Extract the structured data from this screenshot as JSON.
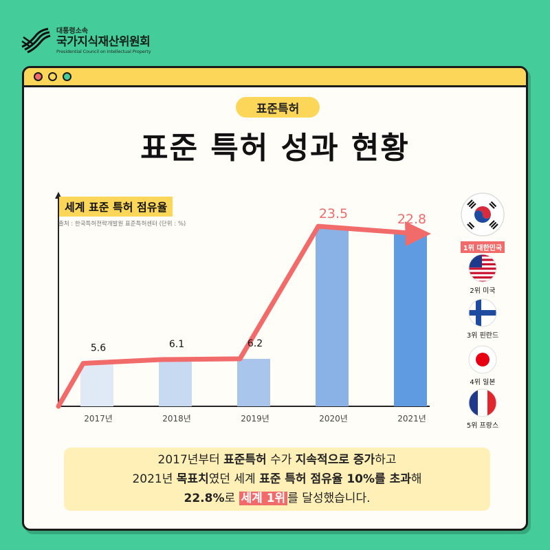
{
  "logo": {
    "small": "대통령소속",
    "name": "국가지식재산위원회",
    "english": "Presidential Council on Intellectual Property"
  },
  "badge": "표준특허",
  "title": "표준 특허 성과 현황",
  "chart_data": {
    "type": "bar",
    "title": "세계 표준 특허 점유율",
    "source": "출처 : 한국특허전략개발원 표준특허센터 (단위 : %)",
    "categories": [
      "2017년",
      "2018년",
      "2019년",
      "2020년",
      "2021년"
    ],
    "values": [
      5.6,
      6.1,
      6.2,
      23.5,
      22.8
    ],
    "value_labels": [
      "5.6",
      "6.1",
      "6.2",
      "23.5",
      "22.8"
    ],
    "ylim": [
      0,
      28
    ],
    "trend_line": true,
    "colors": {
      "bars": [
        "#E0EAF7",
        "#C8DAF1",
        "#AAC5EC",
        "#8AB2E6",
        "#5E9BE0"
      ],
      "trend": "#F26B6B",
      "label_highlight": "#F26B6B",
      "label_normal": "#111111"
    },
    "grid": false
  },
  "rankings": [
    {
      "label": "1위 대한민국",
      "flag": "korea-flag-icon"
    },
    {
      "label": "2위 미국",
      "flag": "usa-flag-icon"
    },
    {
      "label": "3위 핀란드",
      "flag": "finland-flag-icon"
    },
    {
      "label": "4위 일본",
      "flag": "japan-flag-icon"
    },
    {
      "label": "5위 프랑스",
      "flag": "france-flag-icon"
    }
  ],
  "summary": {
    "l1_a": "2017년부터 ",
    "l1_b": "표준특허",
    "l1_c": " 수가 ",
    "l1_d": "지속적으로 증가",
    "l1_e": "하고",
    "l2_a": "2021년 ",
    "l2_b": "목표치",
    "l2_c": "였던 세계 ",
    "l2_d": "표준 특허 점유율 10%를 초과",
    "l2_e": "해",
    "l3_a": "22.8%",
    "l3_b": "로 ",
    "l3_c": "세계 1위",
    "l3_d": "를 달성했습니다."
  },
  "theme": {
    "background": "#44CC9A",
    "accent_yellow": "#FCD658",
    "accent_red": "#F26B6B"
  }
}
